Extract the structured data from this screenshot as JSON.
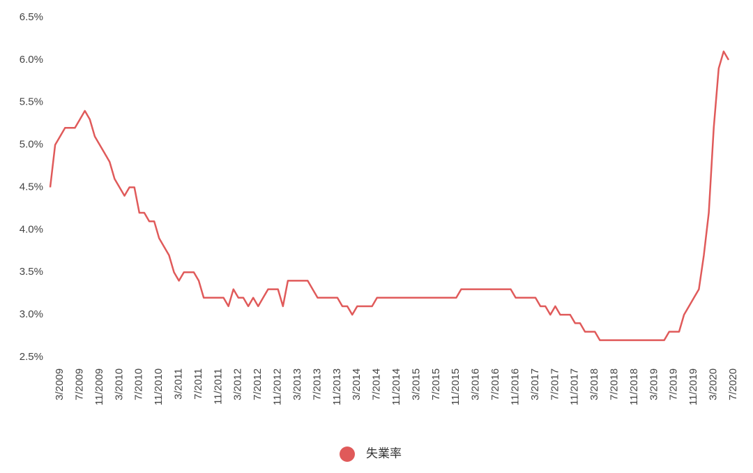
{
  "chart_data": {
    "type": "line",
    "categories": [
      null,
      "3/2009",
      null,
      null,
      null,
      "7/2009",
      null,
      null,
      null,
      "11/2009",
      null,
      null,
      null,
      "3/2010",
      null,
      null,
      null,
      "7/2010",
      null,
      null,
      null,
      "11/2010",
      null,
      null,
      null,
      "3/2011",
      null,
      null,
      null,
      "7/2011",
      null,
      null,
      null,
      "11/2011",
      null,
      null,
      null,
      "3/2012",
      null,
      null,
      null,
      "7/2012",
      null,
      null,
      null,
      "11/2012",
      null,
      null,
      null,
      "3/2013",
      null,
      null,
      null,
      "7/2013",
      null,
      null,
      null,
      "11/2013",
      null,
      null,
      null,
      "3/2014",
      null,
      null,
      null,
      "7/2014",
      null,
      null,
      null,
      "11/2014",
      null,
      null,
      null,
      "3/2015",
      null,
      null,
      null,
      "7/2015",
      null,
      null,
      null,
      "11/2015",
      null,
      null,
      null,
      "3/2016",
      null,
      null,
      null,
      "7/2016",
      null,
      null,
      null,
      "11/2016",
      null,
      null,
      null,
      "3/2017",
      null,
      null,
      null,
      "7/2017",
      null,
      null,
      null,
      "11/2017",
      null,
      null,
      null,
      "3/2018",
      null,
      null,
      null,
      "7/2018",
      null,
      null,
      null,
      "11/2018",
      null,
      null,
      null,
      "3/2019",
      null,
      null,
      null,
      "7/2019",
      null,
      null,
      null,
      "11/2019",
      null,
      null,
      null,
      "3/2020",
      null,
      null,
      null,
      "7/2020"
    ],
    "series": [
      {
        "name": "失業率",
        "color": "#e05a5a",
        "values": [
          4.5,
          5.0,
          5.1,
          5.2,
          5.2,
          5.2,
          5.3,
          5.4,
          5.3,
          5.1,
          5.0,
          4.9,
          4.8,
          4.6,
          4.5,
          4.4,
          4.5,
          4.5,
          4.2,
          4.2,
          4.1,
          4.1,
          3.9,
          3.8,
          3.7,
          3.5,
          3.4,
          3.5,
          3.5,
          3.5,
          3.4,
          3.2,
          3.2,
          3.2,
          3.2,
          3.2,
          3.1,
          3.3,
          3.2,
          3.2,
          3.1,
          3.2,
          3.1,
          3.2,
          3.3,
          3.3,
          3.3,
          3.1,
          3.4,
          3.4,
          3.4,
          3.4,
          3.4,
          3.3,
          3.2,
          3.2,
          3.2,
          3.2,
          3.2,
          3.1,
          3.1,
          3.0,
          3.1,
          3.1,
          3.1,
          3.1,
          3.2,
          3.2,
          3.2,
          3.2,
          3.2,
          3.2,
          3.2,
          3.2,
          3.2,
          3.2,
          3.2,
          3.2,
          3.2,
          3.2,
          3.2,
          3.2,
          3.2,
          3.3,
          3.3,
          3.3,
          3.3,
          3.3,
          3.3,
          3.3,
          3.3,
          3.3,
          3.3,
          3.3,
          3.2,
          3.2,
          3.2,
          3.2,
          3.2,
          3.1,
          3.1,
          3.0,
          3.1,
          3.0,
          3.0,
          3.0,
          2.9,
          2.9,
          2.8,
          2.8,
          2.8,
          2.7,
          2.7,
          2.7,
          2.7,
          2.7,
          2.7,
          2.7,
          2.7,
          2.7,
          2.7,
          2.7,
          2.7,
          2.7,
          2.7,
          2.8,
          2.8,
          2.8,
          3.0,
          3.1,
          3.2,
          3.3,
          3.7,
          4.2,
          5.2,
          5.9,
          6.1,
          6.0
        ]
      }
    ],
    "ylim": [
      2.5,
      6.5
    ],
    "yticks": [
      {
        "value": 2.5,
        "label": "2.5%"
      },
      {
        "value": 3.0,
        "label": "3.0%"
      },
      {
        "value": 3.5,
        "label": "3.5%"
      },
      {
        "value": 4.0,
        "label": "4.0%"
      },
      {
        "value": 4.5,
        "label": "4.5%"
      },
      {
        "value": 5.0,
        "label": "5.0%"
      },
      {
        "value": 5.5,
        "label": "5.5%"
      },
      {
        "value": 6.0,
        "label": "6.0%"
      },
      {
        "value": 6.5,
        "label": "6.5%"
      }
    ],
    "grid": false,
    "legend": "bottom"
  }
}
